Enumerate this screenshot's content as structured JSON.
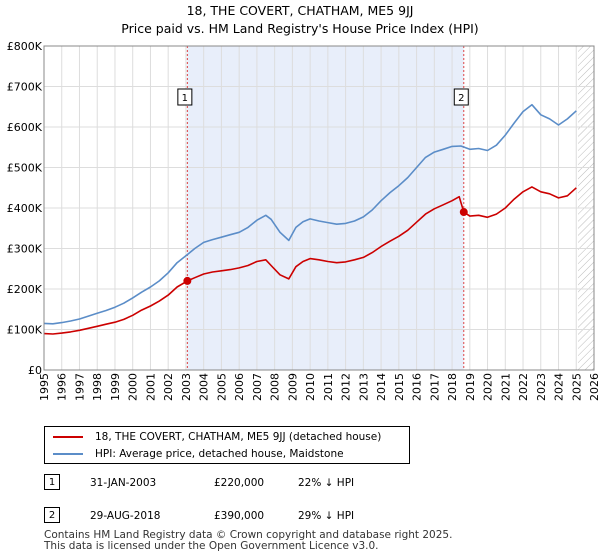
{
  "title": {
    "line1": "18, THE COVERT, CHATHAM, ME5 9JJ",
    "line2": "Price paid vs. HM Land Registry's House Price Index (HPI)"
  },
  "colors": {
    "property": "#cc0000",
    "hpi": "#5b8dc8",
    "shade": "#e8eefa",
    "vline": "#dd4444"
  },
  "chart_data": {
    "type": "line",
    "title": "Price paid vs. HM Land Registry's House Price Index (HPI)",
    "xlim": [
      1995,
      2026
    ],
    "ylim": [
      0,
      800000
    ],
    "xticks": [
      1995,
      1996,
      1997,
      1998,
      1999,
      2000,
      2001,
      2002,
      2003,
      2004,
      2005,
      2006,
      2007,
      2008,
      2009,
      2010,
      2011,
      2012,
      2013,
      2014,
      2015,
      2016,
      2017,
      2018,
      2019,
      2020,
      2021,
      2022,
      2023,
      2024,
      2025,
      2026
    ],
    "yticks": [
      0,
      100000,
      200000,
      300000,
      400000,
      500000,
      600000,
      700000,
      800000
    ],
    "ytick_labels": [
      "£0",
      "£100K",
      "£200K",
      "£300K",
      "£400K",
      "£500K",
      "£600K",
      "£700K",
      "£800K"
    ],
    "grid": true,
    "shaded_span": [
      2003.08,
      2018.66
    ],
    "forecast_hatch_from": 2025.1,
    "series": [
      {
        "name": "18, THE COVERT, CHATHAM, ME5 9JJ (detached house)",
        "color": "#cc0000",
        "x": [
          1995.0,
          1995.5,
          1996.0,
          1996.5,
          1997.0,
          1997.5,
          1998.0,
          1998.5,
          1999.0,
          1999.5,
          2000.0,
          2000.5,
          2001.0,
          2001.5,
          2002.0,
          2002.5,
          2003.08,
          2003.5,
          2004.0,
          2004.5,
          2005.0,
          2005.5,
          2006.0,
          2006.5,
          2007.0,
          2007.5,
          2007.8,
          2008.3,
          2008.8,
          2009.2,
          2009.6,
          2010.0,
          2010.5,
          2011.0,
          2011.5,
          2012.0,
          2012.5,
          2013.0,
          2013.5,
          2014.0,
          2014.5,
          2015.0,
          2015.5,
          2016.0,
          2016.5,
          2017.0,
          2017.5,
          2018.0,
          2018.4,
          2018.66,
          2019.0,
          2019.5,
          2020.0,
          2020.5,
          2021.0,
          2021.5,
          2022.0,
          2022.5,
          2023.0,
          2023.5,
          2024.0,
          2024.5,
          2025.0
        ],
        "values": [
          90000,
          89000,
          91000,
          94000,
          98000,
          103000,
          108000,
          113000,
          118000,
          125000,
          135000,
          148000,
          158000,
          170000,
          185000,
          205000,
          220000,
          228000,
          237000,
          242000,
          245000,
          248000,
          252000,
          258000,
          268000,
          272000,
          258000,
          235000,
          225000,
          255000,
          268000,
          275000,
          272000,
          268000,
          265000,
          267000,
          272000,
          278000,
          290000,
          305000,
          318000,
          330000,
          345000,
          365000,
          385000,
          398000,
          408000,
          418000,
          428000,
          390000,
          380000,
          382000,
          377000,
          385000,
          400000,
          422000,
          440000,
          452000,
          440000,
          435000,
          425000,
          430000,
          450000
        ]
      },
      {
        "name": "HPI: Average price, detached house, Maidstone",
        "color": "#5b8dc8",
        "x": [
          1995.0,
          1995.5,
          1996.0,
          1996.5,
          1997.0,
          1997.5,
          1998.0,
          1998.5,
          1999.0,
          1999.5,
          2000.0,
          2000.5,
          2001.0,
          2001.5,
          2002.0,
          2002.5,
          2003.0,
          2003.5,
          2004.0,
          2004.5,
          2005.0,
          2005.5,
          2006.0,
          2006.5,
          2007.0,
          2007.5,
          2007.8,
          2008.3,
          2008.8,
          2009.2,
          2009.6,
          2010.0,
          2010.5,
          2011.0,
          2011.5,
          2012.0,
          2012.5,
          2013.0,
          2013.5,
          2014.0,
          2014.5,
          2015.0,
          2015.5,
          2016.0,
          2016.5,
          2017.0,
          2017.5,
          2018.0,
          2018.5,
          2019.0,
          2019.5,
          2020.0,
          2020.5,
          2021.0,
          2021.5,
          2022.0,
          2022.5,
          2023.0,
          2023.5,
          2024.0,
          2024.5,
          2025.0
        ],
        "values": [
          115000,
          114000,
          117000,
          121000,
          126000,
          133000,
          140000,
          147000,
          155000,
          165000,
          178000,
          192000,
          205000,
          220000,
          240000,
          265000,
          282000,
          300000,
          315000,
          322000,
          328000,
          334000,
          340000,
          352000,
          370000,
          382000,
          372000,
          340000,
          320000,
          352000,
          366000,
          373000,
          368000,
          364000,
          360000,
          362000,
          368000,
          378000,
          395000,
          418000,
          438000,
          455000,
          475000,
          500000,
          525000,
          538000,
          545000,
          552000,
          553000,
          545000,
          547000,
          542000,
          555000,
          580000,
          610000,
          638000,
          655000,
          630000,
          620000,
          605000,
          620000,
          640000
        ]
      }
    ],
    "sale_markers": [
      {
        "label": "1",
        "x": 2003.08,
        "y": 220000
      },
      {
        "label": "2",
        "x": 2018.66,
        "y": 390000
      }
    ]
  },
  "legend": {
    "property": "18, THE COVERT, CHATHAM, ME5 9JJ (detached house)",
    "hpi": "HPI: Average price, detached house, Maidstone"
  },
  "sales": [
    {
      "num": "1",
      "date": "31-JAN-2003",
      "price": "£220,000",
      "hpi": "22% ↓ HPI"
    },
    {
      "num": "2",
      "date": "29-AUG-2018",
      "price": "£390,000",
      "hpi": "29% ↓ HPI"
    }
  ],
  "footer": {
    "line1": "Contains HM Land Registry data © Crown copyright and database right 2025.",
    "line2": "This data is licensed under the Open Government Licence v3.0."
  }
}
